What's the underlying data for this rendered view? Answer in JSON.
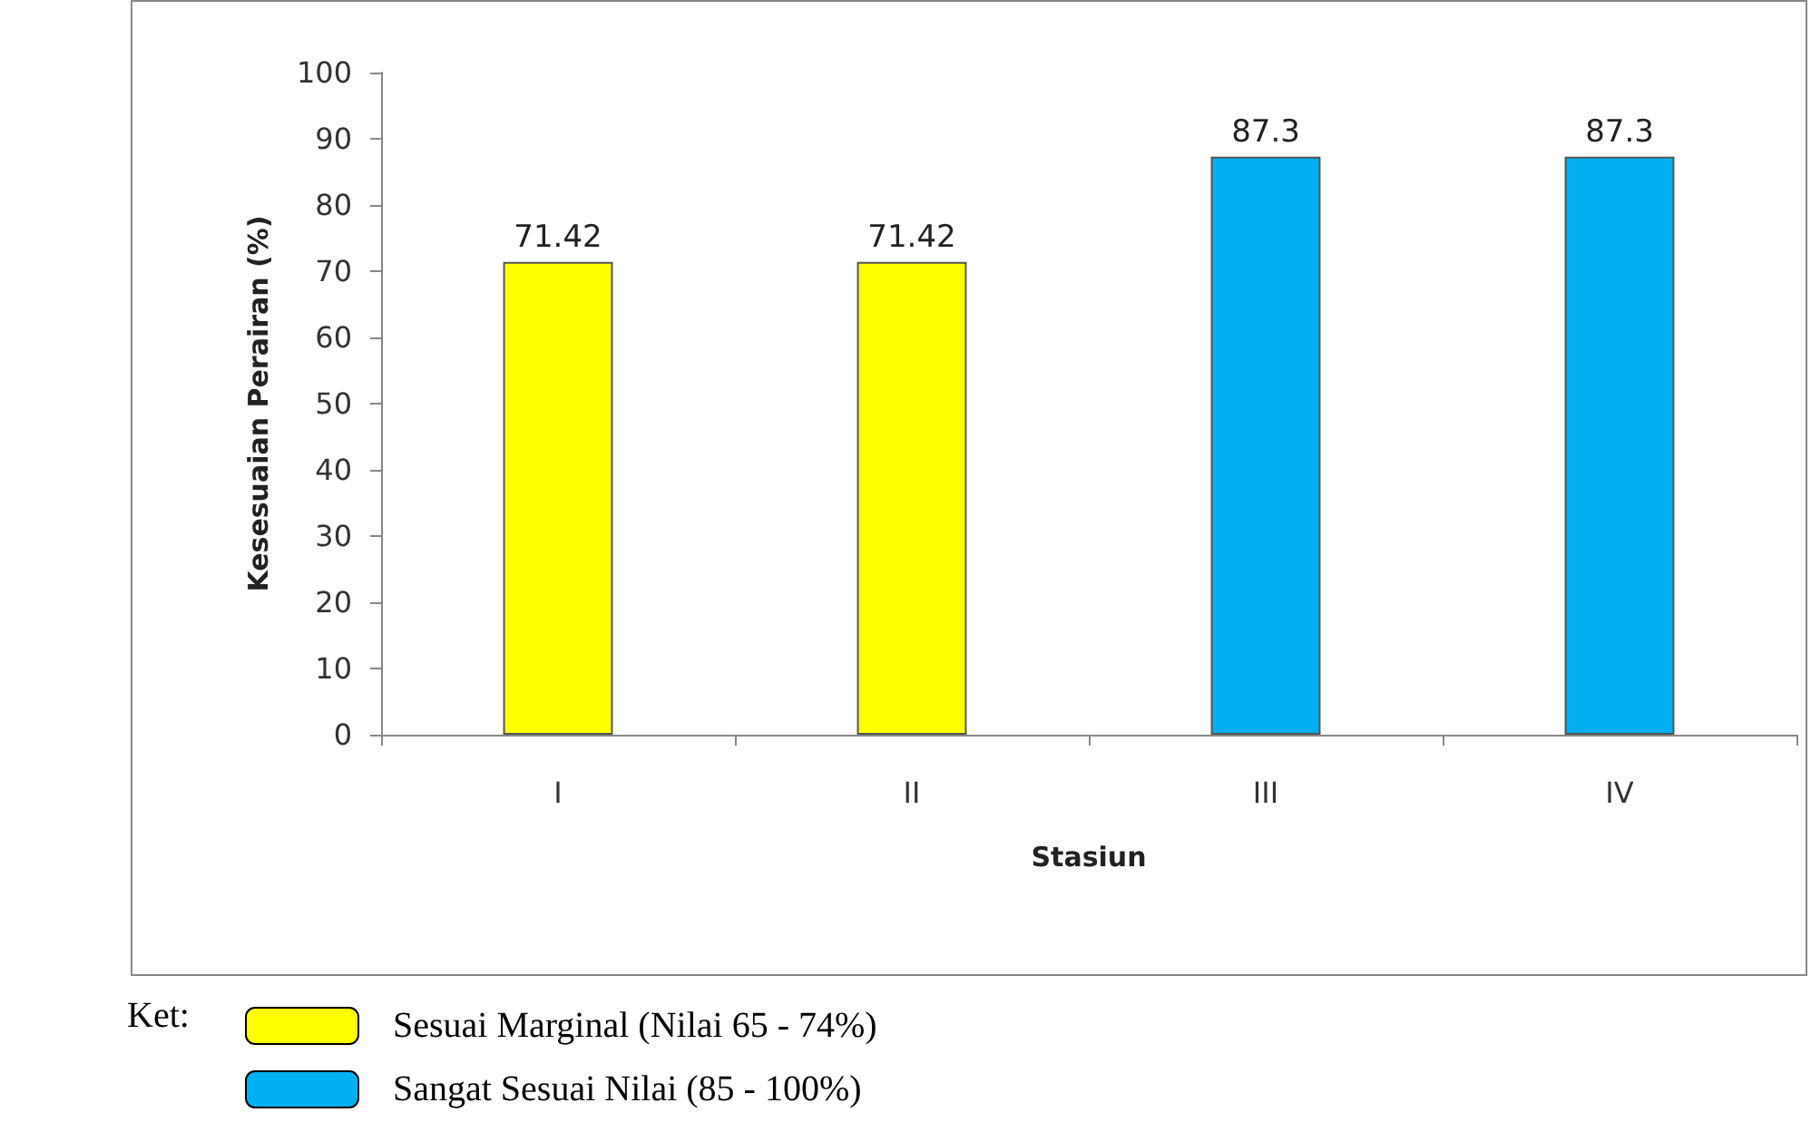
{
  "chart_data": {
    "type": "bar",
    "xlabel": "Stasiun",
    "ylabel": "Kesesuaian Perairan (%)",
    "categories": [
      "I",
      "II",
      "III",
      "IV"
    ],
    "series": [
      {
        "name": "Sesuai Marginal (Nilai 65 - 74%)",
        "color": "#ffff00",
        "values": [
          71.42,
          71.42,
          null,
          null
        ]
      },
      {
        "name": "Sangat Sesuai Nilai (85 - 100%)",
        "color": "#00b0f0",
        "values": [
          null,
          null,
          87.3,
          87.3
        ]
      }
    ],
    "stacked": true,
    "ylim": [
      0,
      100
    ],
    "yticks": [
      0,
      10,
      20,
      30,
      40,
      50,
      60,
      70,
      80,
      90,
      100
    ],
    "grid": false,
    "data_labels": true,
    "legend": "bottom left",
    "legend_title": "Ket:"
  }
}
